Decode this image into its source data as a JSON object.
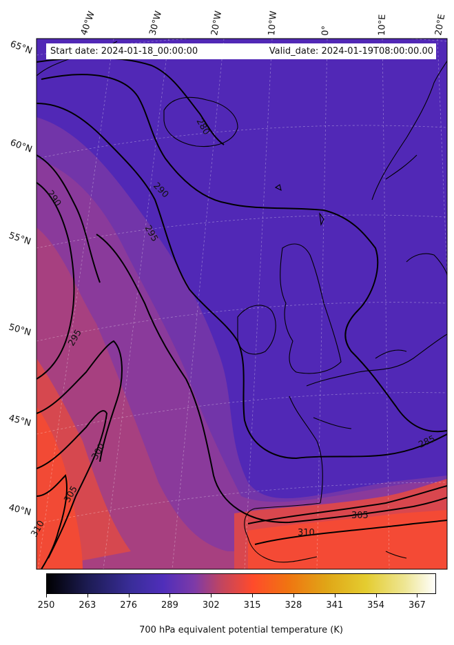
{
  "header": {
    "start_label": "Start date: 2024-01-18_00:00:00",
    "valid_label": "Valid_date: 2024-01-19T08:00:00.00"
  },
  "axes": {
    "longitude_labels": [
      "40°W",
      "30°W",
      "20°W",
      "10°W",
      "0°",
      "10°E",
      "20°E"
    ],
    "latitude_labels": [
      "65°N",
      "60°N",
      "55°N",
      "50°N",
      "45°N",
      "40°N"
    ]
  },
  "contours": {
    "levels_labeled": [
      "280",
      "285",
      "290",
      "295",
      "300",
      "305",
      "310"
    ],
    "labels": [
      "280",
      "290",
      "290",
      "295",
      "295",
      "300",
      "305",
      "305",
      "310",
      "310",
      "285"
    ]
  },
  "colorbar": {
    "ticks": [
      "250",
      "263",
      "276",
      "289",
      "302",
      "315",
      "328",
      "341",
      "354",
      "367"
    ],
    "range": [
      250,
      373
    ],
    "title": "700 hPa equivalent potential temperature (K)",
    "colormap": "CMRmap",
    "colors": [
      "#000000",
      "#1a1a4d",
      "#3d2f9e",
      "#5a2fb7",
      "#8a3c9c",
      "#c8465e",
      "#ff4b2d",
      "#f07b0a",
      "#e0a010",
      "#e6cf2e",
      "#f0ec8e",
      "#ffffff"
    ]
  }
}
